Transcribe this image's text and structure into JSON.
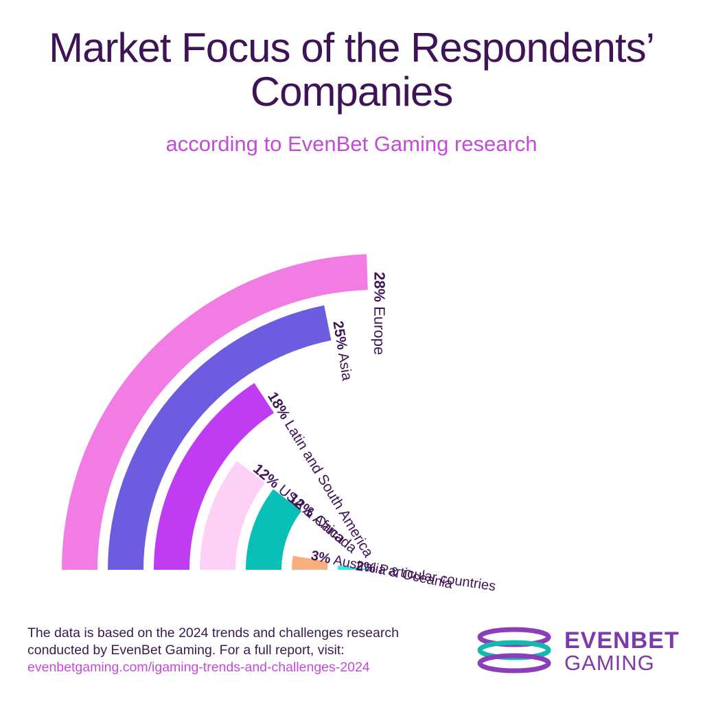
{
  "header": {
    "title_line1": "Market Focus of the Respondents’",
    "title_line2": "Companies",
    "subtitle": "according to EvenBet Gaming research"
  },
  "chart_data": {
    "type": "radial-bar",
    "max_value": 28,
    "series": [
      {
        "value": 28,
        "value_label": "28%",
        "name": "Europe",
        "color": "#f17de4"
      },
      {
        "value": 25,
        "value_label": "25%",
        "name": "Asia",
        "color": "#6c5ce0"
      },
      {
        "value": 18,
        "value_label": "18%",
        "name": "Latin and South America",
        "color": "#c03cf2"
      },
      {
        "value": 12,
        "value_label": "12%",
        "name": "USA & Canada",
        "color": "#fdd0f5"
      },
      {
        "value": 12,
        "value_label": "12%",
        "name": "Africa",
        "color": "#07bfb5"
      },
      {
        "value": 3,
        "value_label": "3%",
        "name": "Australia & Oceania",
        "color": "#fbae7d"
      },
      {
        "value": 2,
        "value_label": "2%",
        "name": "Particular countries",
        "color": "#35e8ee"
      }
    ]
  },
  "footer": {
    "line1": "The data is based on the 2024 trends and challenges research",
    "line2": "conducted by EvenBet Gaming. For a full report, visit:",
    "link": "evenbetgaming.com/igaming-trends-and-challenges-2024"
  },
  "logo": {
    "word1": "EVENBET",
    "word2": "GAMING",
    "color_purple": "#8a3fb8",
    "color_teal": "#12b9ad"
  }
}
